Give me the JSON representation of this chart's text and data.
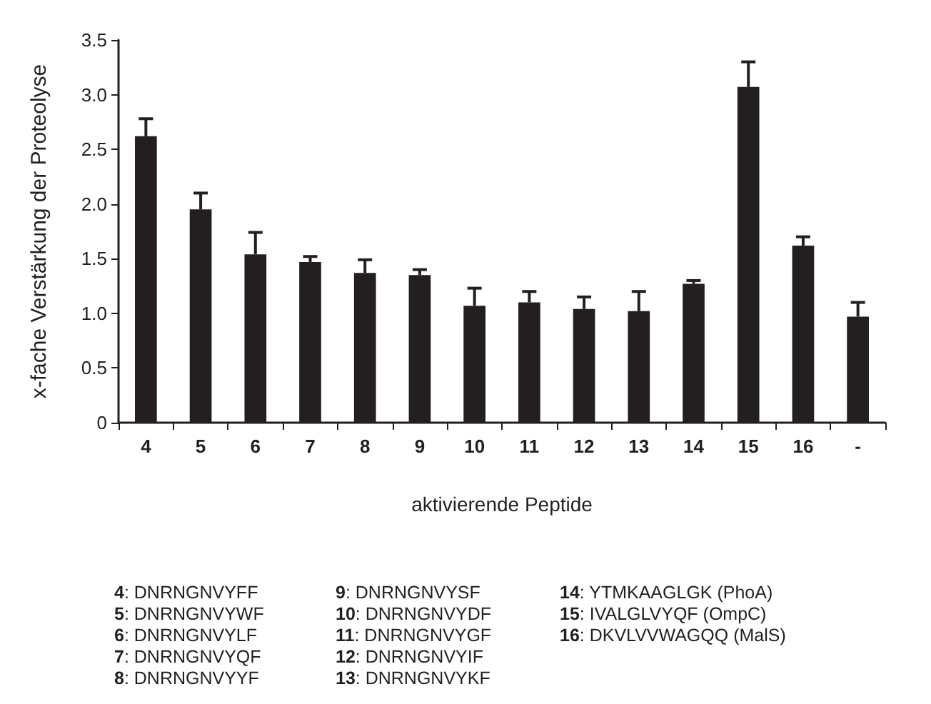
{
  "chart_data": {
    "type": "bar",
    "xlabel": "aktivierende Peptide",
    "ylabel": "x-fache Verstärkung der Proteolyse",
    "categories": [
      "4",
      "5",
      "6",
      "7",
      "8",
      "9",
      "10",
      "11",
      "12",
      "13",
      "14",
      "15",
      "16",
      "-"
    ],
    "series": [
      {
        "color": "#231f20",
        "values": [
          2.62,
          1.95,
          1.54,
          1.47,
          1.37,
          1.35,
          1.07,
          1.1,
          1.04,
          1.02,
          1.27,
          3.07,
          1.62,
          0.97
        ],
        "errors": [
          [
            2.62,
            2.78
          ],
          [
            1.95,
            2.1
          ],
          [
            1.54,
            1.74
          ],
          [
            1.47,
            1.52
          ],
          [
            1.37,
            1.49
          ],
          [
            1.35,
            1.4
          ],
          [
            1.07,
            1.23
          ],
          [
            1.1,
            1.2
          ],
          [
            1.04,
            1.15
          ],
          [
            1.02,
            1.2
          ],
          [
            1.27,
            1.3
          ],
          [
            3.07,
            3.3
          ],
          [
            1.62,
            1.7
          ],
          [
            0.97,
            1.1
          ]
        ]
      }
    ],
    "ylim": [
      0,
      3.5
    ],
    "yticks": [
      {
        "value": 0,
        "label": "0"
      },
      {
        "value": 0.5,
        "label": "0.5"
      },
      {
        "value": 1,
        "label": "1.0"
      },
      {
        "value": 1.5,
        "label": "1.5"
      },
      {
        "value": 2,
        "label": "2.0"
      },
      {
        "value": 2.5,
        "label": "2.5"
      },
      {
        "value": 3,
        "label": "3.0"
      },
      {
        "value": 3.5,
        "label": "3.5"
      }
    ],
    "grid": false,
    "annotations": [
      "4: DNRNGNVYFF",
      "5: DNRNGNVYWF",
      "6: DNRNGNVYLF",
      "7: DNRNGNVYQF",
      "8: DNRNGNVYYF",
      "9: DNRNGNVYSF",
      "10: DNRNGNVYDF",
      "11: DNRNGNVYGF",
      "12: DNRNGNVYIF",
      "13: DNRNGNVYKF",
      "14: YTMKAAGLGK (PhoA)",
      "15: IVALGLVYQF (OmpC)",
      "16: DKVLVVWAGQQ (MalS)"
    ]
  }
}
